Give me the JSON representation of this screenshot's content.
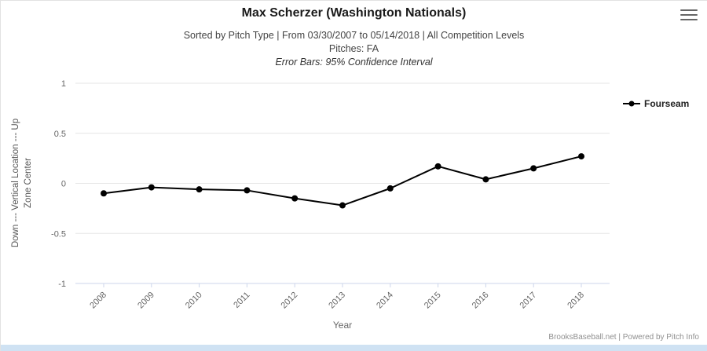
{
  "header": {
    "title": "Max Scherzer (Washington Nationals)",
    "subtitle1": "Sorted by Pitch Type | From 03/30/2007 to 05/14/2018 | All Competition Levels",
    "subtitle2": "Pitches: FA",
    "subtitle3": "Error Bars: 95% Confidence Interval"
  },
  "legend": {
    "label": "Fourseam"
  },
  "icons": {
    "menu": "hamburger-menu",
    "legend_marker": "line-with-dot"
  },
  "footer": {
    "credit": "BrooksBaseball.net | Powered by Pitch Info"
  },
  "colors": {
    "line": "#000000",
    "grid": "#e6e6e6",
    "axis": "#ccd6eb",
    "tick_label": "#666666",
    "axis_title": "#666666",
    "bottom_strip": "#cfe2f3"
  },
  "chart_data": {
    "type": "line",
    "title": "Max Scherzer (Washington Nationals)",
    "x": [
      2008,
      2009,
      2010,
      2011,
      2012,
      2013,
      2014,
      2015,
      2016,
      2017,
      2018
    ],
    "series": [
      {
        "name": "Fourseam",
        "color": "#000000",
        "values": [
          -0.1,
          -0.04,
          -0.06,
          -0.07,
          -0.15,
          -0.22,
          -0.05,
          0.17,
          0.04,
          0.15,
          0.27
        ]
      }
    ],
    "xlabel": "Year",
    "ylabel_line1": "Down --- Vertical Location --- Up",
    "ylabel_line2": "Zone Center",
    "ylim": [
      -1,
      1
    ],
    "yticks": [
      1,
      0.5,
      0,
      -0.5,
      -1
    ],
    "grid": true,
    "legend_position": "right"
  }
}
